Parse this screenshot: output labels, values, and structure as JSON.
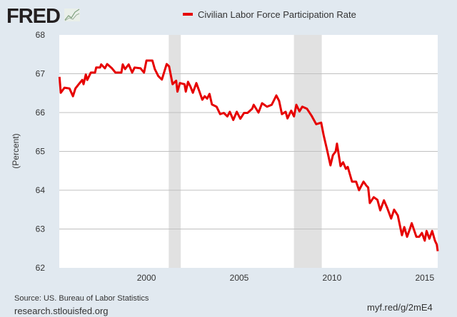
{
  "header": {
    "logo_text": "FRED",
    "legend_label": "Civilian Labor Force Participation Rate"
  },
  "footer": {
    "source": "Source: US. Bureau of Labor Statistics",
    "site": "research.stlouisfed.org",
    "short_link": "myf.red/g/2mE4"
  },
  "colors": {
    "series": "#e60000",
    "background": "#e1e9f0",
    "recession": "#e1e1e1",
    "grid": "#c0c0c0"
  },
  "chart_data": {
    "type": "line",
    "title": "Civilian Labor Force Participation Rate",
    "xlabel": "",
    "ylabel": "(Percent)",
    "xlim": [
      1995.3,
      2015.7
    ],
    "ylim": [
      62,
      68
    ],
    "grid": true,
    "legend_placement": "top-center",
    "x_ticks": [
      {
        "value": 2000,
        "label": "2000"
      },
      {
        "value": 2005,
        "label": "2005"
      },
      {
        "value": 2010,
        "label": "2010"
      },
      {
        "value": 2015,
        "label": "2015"
      }
    ],
    "y_ticks": [
      {
        "value": 62,
        "label": "62"
      },
      {
        "value": 63,
        "label": "63"
      },
      {
        "value": 64,
        "label": "64"
      },
      {
        "value": 65,
        "label": "65"
      },
      {
        "value": 66,
        "label": "66"
      },
      {
        "value": 67,
        "label": "67"
      },
      {
        "value": 68,
        "label": "68"
      }
    ],
    "recessions": [
      [
        2001.2,
        2001.85
      ],
      [
        2007.95,
        2009.45
      ]
    ],
    "series": [
      {
        "name": "Civilian Labor Force Participation Rate",
        "x": [
          1995.31,
          1995.38,
          1995.58,
          1995.85,
          1996.04,
          1996.17,
          1996.35,
          1996.54,
          1996.61,
          1996.73,
          1996.81,
          1997.0,
          1997.23,
          1997.29,
          1997.5,
          1997.56,
          1997.76,
          1997.88,
          1998.14,
          1998.33,
          1998.65,
          1998.72,
          1998.85,
          1999.04,
          1999.23,
          1999.36,
          1999.68,
          1999.87,
          2000.0,
          2000.32,
          2000.45,
          2000.64,
          2000.83,
          2001.09,
          2001.22,
          2001.41,
          2001.6,
          2001.67,
          2001.8,
          2002.05,
          2002.12,
          2002.24,
          2002.37,
          2002.5,
          2002.69,
          2002.88,
          2003.01,
          2003.14,
          2003.27,
          2003.4,
          2003.53,
          2003.78,
          2003.97,
          2004.17,
          2004.36,
          2004.49,
          2004.68,
          2004.87,
          2005.06,
          2005.26,
          2005.45,
          2005.7,
          2005.78,
          2006.04,
          2006.23,
          2006.5,
          2006.75,
          2007.0,
          2007.15,
          2007.3,
          2007.5,
          2007.6,
          2007.8,
          2007.95,
          2008.08,
          2008.25,
          2008.4,
          2008.65,
          2008.9,
          2009.15,
          2009.42,
          2009.55,
          2009.73,
          2009.92,
          2010.05,
          2010.2,
          2010.27,
          2010.46,
          2010.6,
          2010.75,
          2010.85,
          2011.08,
          2011.3,
          2011.46,
          2011.7,
          2011.85,
          2011.95,
          2012.04,
          2012.25,
          2012.45,
          2012.6,
          2012.8,
          2012.97,
          2013.19,
          2013.35,
          2013.55,
          2013.77,
          2013.9,
          2014.05,
          2014.2,
          2014.3,
          2014.55,
          2014.7,
          2014.85,
          2015.0,
          2015.1,
          2015.25,
          2015.4,
          2015.55,
          2015.65,
          2015.7
        ],
        "y": [
          66.92,
          66.51,
          66.64,
          66.62,
          66.42,
          66.62,
          66.73,
          66.84,
          66.73,
          66.98,
          66.84,
          67.03,
          67.03,
          67.16,
          67.16,
          67.24,
          67.14,
          67.25,
          67.14,
          67.03,
          67.03,
          67.24,
          67.12,
          67.24,
          67.03,
          67.16,
          67.14,
          67.03,
          67.34,
          67.34,
          67.12,
          66.94,
          66.85,
          67.25,
          67.19,
          66.73,
          66.82,
          66.54,
          66.76,
          66.73,
          66.54,
          66.79,
          66.67,
          66.51,
          66.76,
          66.51,
          66.33,
          66.42,
          66.36,
          66.48,
          66.21,
          66.15,
          65.96,
          65.99,
          65.9,
          66.02,
          65.81,
          66.02,
          65.84,
          65.99,
          65.99,
          66.1,
          66.2,
          66.0,
          66.24,
          66.15,
          66.2,
          66.44,
          66.3,
          65.96,
          66.02,
          65.85,
          66.05,
          65.9,
          66.2,
          66.03,
          66.15,
          66.1,
          65.92,
          65.7,
          65.74,
          65.42,
          65.05,
          64.64,
          64.9,
          65.0,
          65.2,
          64.62,
          64.72,
          64.55,
          64.6,
          64.22,
          64.22,
          64.0,
          64.22,
          64.12,
          64.07,
          63.67,
          63.82,
          63.75,
          63.48,
          63.74,
          63.55,
          63.27,
          63.5,
          63.35,
          62.84,
          63.05,
          62.8,
          63.0,
          63.15,
          62.8,
          62.8,
          62.9,
          62.7,
          62.95,
          62.75,
          62.95,
          62.7,
          62.6,
          62.43
        ]
      }
    ]
  }
}
